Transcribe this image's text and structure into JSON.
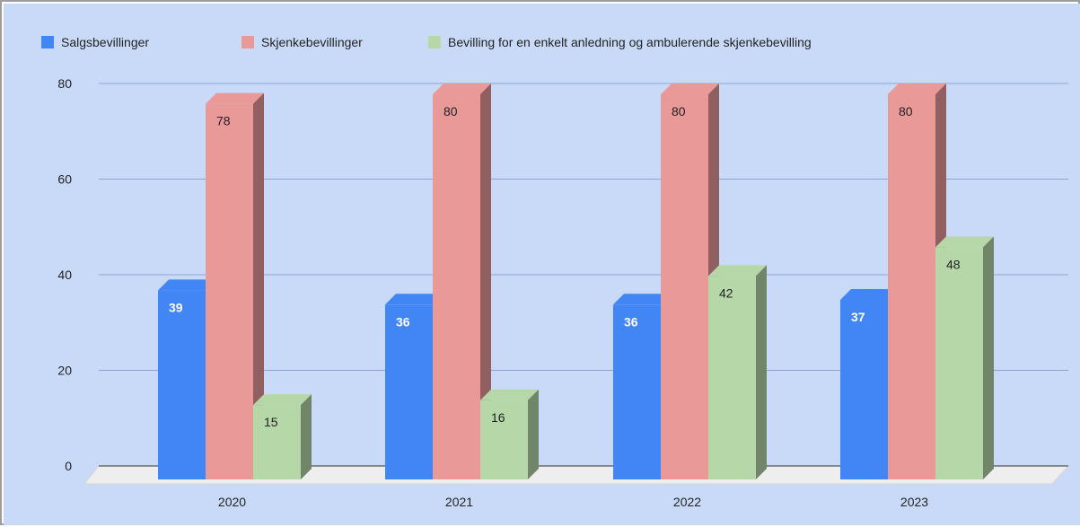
{
  "chart_data": {
    "type": "bar",
    "title": "",
    "xlabel": "",
    "ylabel": "",
    "ylim": [
      0,
      80
    ],
    "yticks": [
      0,
      20,
      40,
      60,
      80
    ],
    "grid": true,
    "legend_position": "top-left",
    "style": "3d",
    "categories": [
      "2020",
      "2021",
      "2022",
      "2023"
    ],
    "series": [
      {
        "name": "Salgsbevillinger",
        "values": [
          39,
          36,
          36,
          37
        ],
        "color": "#4285f4"
      },
      {
        "name": "Skjenkebevillinger",
        "values": [
          78,
          80,
          80,
          80
        ],
        "color": "#ea9999"
      },
      {
        "name": "Bevilling for en enkelt anledning og ambulerende skjenkebevilling",
        "values": [
          15,
          16,
          42,
          48
        ],
        "color": "#b6d7a8"
      }
    ],
    "colors": {
      "background": "#c9daf8",
      "gridline": "#8ea4cf",
      "floor": "#eeeeee"
    }
  }
}
